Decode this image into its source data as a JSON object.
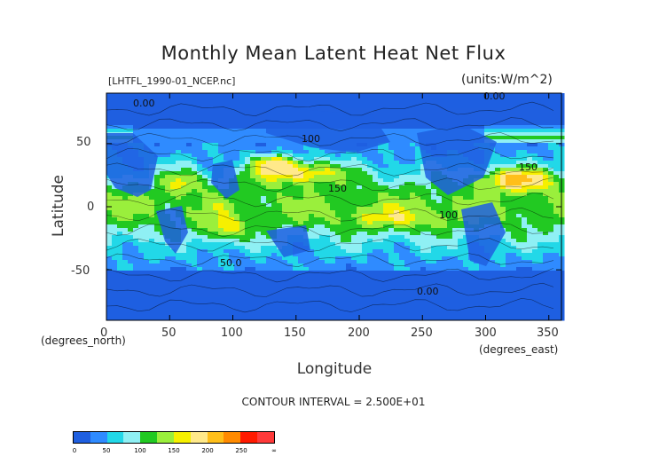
{
  "chart_data": {
    "type": "heatmap",
    "title": "Monthly Mean Latent Heat Net Flux",
    "source_label": "[LHTFL_1990-01_NCEP.nc]",
    "units_label": "(units:W/m^2)",
    "xlabel": "Longitude",
    "ylabel": "Latitude",
    "x_unit_label": "(degrees_east)",
    "y_unit_label": "(degrees_north)",
    "xlim": [
      0,
      360
    ],
    "ylim": [
      -90,
      90
    ],
    "xticks": [
      "0",
      "50",
      "100",
      "150",
      "200",
      "250",
      "300",
      "350"
    ],
    "yticks": [
      "50",
      "0",
      "-50"
    ],
    "contour_interval": "CONTOUR INTERVAL = 2.500E+01",
    "contour_labels": [
      "0.00",
      "50.0",
      "100",
      "150"
    ],
    "legend": {
      "levels": [
        "0",
        "50",
        "100",
        "150",
        "200",
        "250",
        "∞"
      ],
      "colors": [
        "#1f5fe0",
        "#2f8bff",
        "#22d8e8",
        "#8ff0f4",
        "#22c922",
        "#9aef3c",
        "#f6f000",
        "#ffe98a",
        "#ffbf1a",
        "#ff8a00",
        "#ff1a00",
        "#ff3a3a"
      ]
    },
    "grid": false,
    "legend_placement": "bottom-left"
  }
}
